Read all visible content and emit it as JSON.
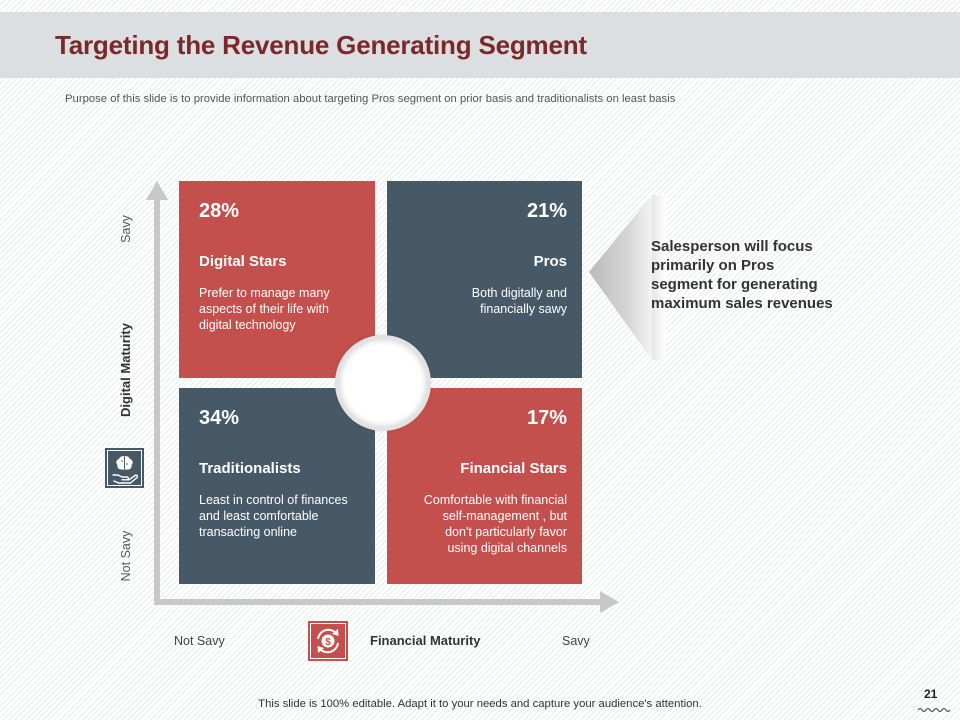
{
  "header": {
    "title": "Targeting the Revenue Generating Segment",
    "subtitle": "Purpose of this slide is to provide  information about targeting Pros segment on prior basis and traditionalists on least basis"
  },
  "matrix": {
    "y_axis": {
      "label": "Digital Maturity",
      "high_label": "Savy",
      "low_label": "Not Savy",
      "icon": "brain-in-hand-icon"
    },
    "x_axis": {
      "label": "Financial Maturity",
      "low_label": "Not Savy",
      "high_label": "Savy",
      "icon": "dollar-cycle-icon"
    },
    "quadrants": [
      {
        "percent": "28%",
        "title": "Digital Stars",
        "description": "Prefer to manage many\naspects of their life with\ndigital technology",
        "color": "#c4504e"
      },
      {
        "percent": "21%",
        "title": "Pros",
        "description": "Both digitally and\nfinancially sawy",
        "color": "#475867"
      },
      {
        "percent": "34%",
        "title": "Traditionalists",
        "description": "Least in control of finances\nand least comfortable\ntransacting online",
        "color": "#475867"
      },
      {
        "percent": "17%",
        "title": "Financial Stars",
        "description": "Comfortable  with financial\nself-management  , but\ndon't particularly favor\nusing digital channels",
        "color": "#c4504e"
      }
    ]
  },
  "callout": {
    "text": "Salesperson will focus\nprimarily on Pros\nsegment for generating\nmaximum sales revenues"
  },
  "footer": {
    "note": "This slide is 100% editable. Adapt it to your needs and capture your audience's attention.",
    "page_number": "21"
  },
  "colors": {
    "title": "#7b2828",
    "accent_red": "#c4504e",
    "accent_slate": "#475867",
    "axis": "#c8c8c8",
    "header_band": "#dcdfe1"
  }
}
